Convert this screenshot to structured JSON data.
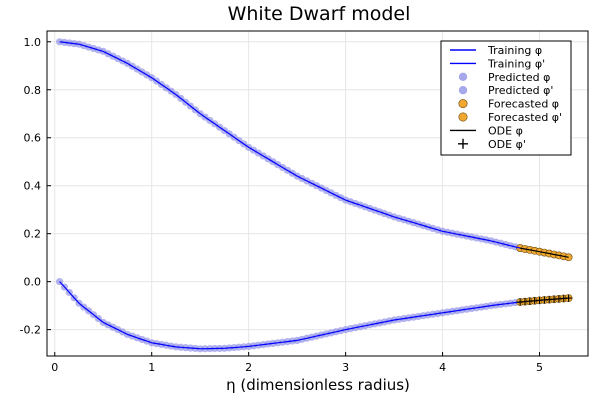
{
  "chart_data": {
    "type": "line",
    "title": "White Dwarf model",
    "xlabel": "η (dimensionless radius)",
    "ylabel": "",
    "xlim": [
      -0.08,
      5.5
    ],
    "ylim": [
      -0.31,
      1.045
    ],
    "xticks": [
      0,
      1,
      2,
      3,
      4,
      5
    ],
    "xtick_labels": [
      "0",
      "1",
      "2",
      "3",
      "4",
      "5"
    ],
    "yticks": [
      -0.2,
      0.0,
      0.2,
      0.4,
      0.6,
      0.8,
      1.0
    ],
    "ytick_labels": [
      "-0.2",
      "0.0",
      "0.2",
      "0.4",
      "0.6",
      "0.8",
      "1.0"
    ],
    "grid": true,
    "legend_position": "top-right",
    "x_start": 0.05,
    "x_train_end": 4.8,
    "x_end": 5.32,
    "step": 0.05,
    "x_sampled": [
      0.05,
      0.25,
      0.5,
      0.75,
      1.0,
      1.25,
      1.5,
      1.75,
      2.0,
      2.5,
      3.0,
      3.5,
      4.0,
      4.5,
      4.8,
      5.0,
      5.32
    ],
    "phi_sampled": [
      1.0,
      0.99,
      0.96,
      0.91,
      0.85,
      0.78,
      0.7,
      0.63,
      0.56,
      0.44,
      0.34,
      0.27,
      0.21,
      0.17,
      0.14,
      0.125,
      0.1
    ],
    "dphi_sampled": [
      0.0,
      -0.09,
      -0.17,
      -0.22,
      -0.255,
      -0.272,
      -0.28,
      -0.278,
      -0.27,
      -0.245,
      -0.2,
      -0.16,
      -0.13,
      -0.1,
      -0.085,
      -0.078,
      -0.068
    ],
    "series": [
      {
        "name": "Training φ",
        "role": "line",
        "color": "#0000ff"
      },
      {
        "name": "Training φ'",
        "role": "line",
        "color": "#0000ff"
      },
      {
        "name": "Predicted φ",
        "role": "marker",
        "color": "#8a8ae6"
      },
      {
        "name": "Predicted φ'",
        "role": "marker",
        "color": "#8a8ae6"
      },
      {
        "name": "Forecasted φ",
        "role": "marker",
        "color": "#f0a830"
      },
      {
        "name": "Forecasted φ'",
        "role": "marker",
        "color": "#f0a830"
      },
      {
        "name": "ODE φ",
        "role": "line",
        "color": "#000000"
      },
      {
        "name": "ODE φ'",
        "role": "cross",
        "color": "#000000"
      }
    ]
  }
}
